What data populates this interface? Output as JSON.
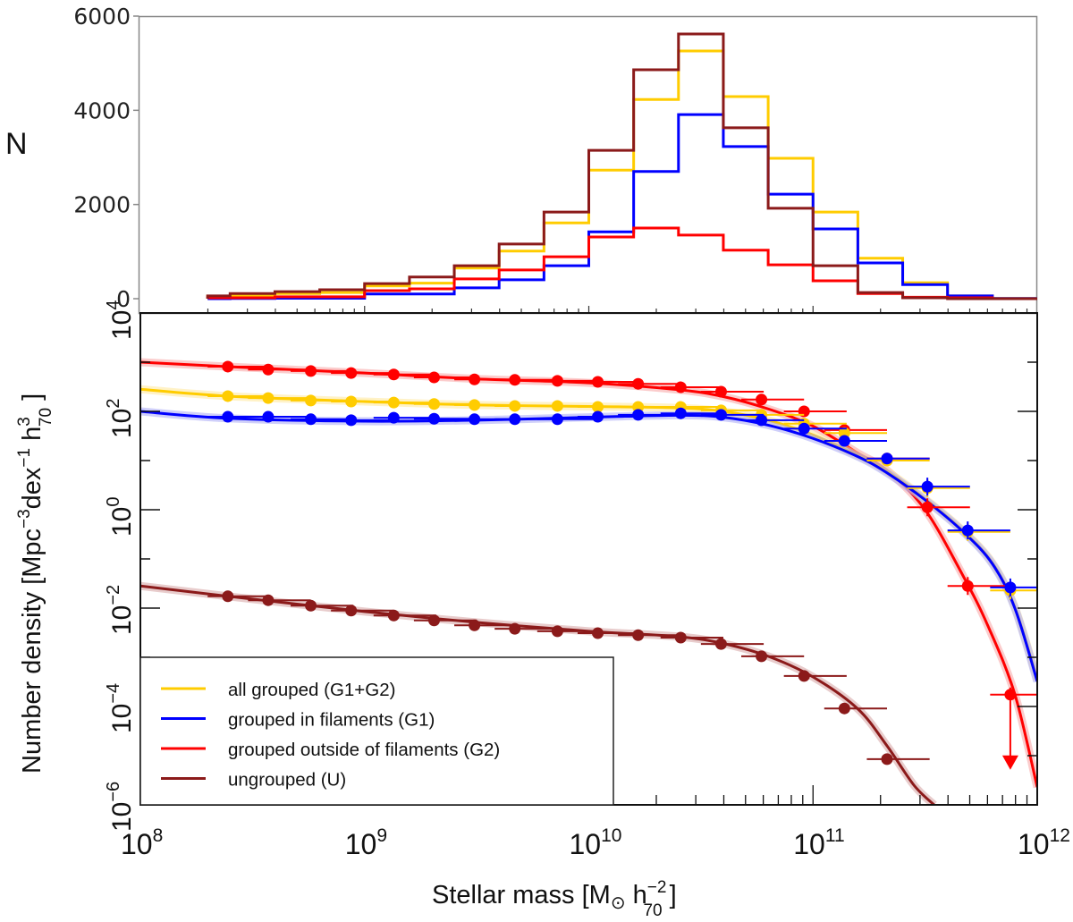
{
  "chart_data": [
    {
      "type": "histogram",
      "panel": "top",
      "ylabel": "N",
      "xscale": "log",
      "xlim_log10": [
        8,
        12
      ],
      "ylim": [
        -300,
        6000
      ],
      "yticks": [
        0,
        2000,
        4000,
        6000
      ],
      "ytick_labels": [
        "0",
        "2000",
        "4000",
        "6000"
      ],
      "bin_edges_log10": [
        8.3,
        8.4,
        8.6,
        8.8,
        9.0,
        9.2,
        9.4,
        9.6,
        9.8,
        10.0,
        10.2,
        10.4,
        10.6,
        10.8,
        11.0,
        11.2,
        11.4,
        11.6,
        11.8,
        12.0
      ],
      "series": [
        {
          "name": "all grouped (G1+G2)",
          "color": "#ffcc00",
          "values": [
            50,
            60,
            110,
            130,
            270,
            330,
            650,
            1010,
            1610,
            2730,
            4230,
            5260,
            4290,
            2980,
            1840,
            860,
            340,
            60,
            5
          ]
        },
        {
          "name": "grouped in filaments (G1)",
          "color": "#0000ff",
          "values": [
            0,
            5,
            10,
            10,
            100,
            100,
            230,
            400,
            700,
            1420,
            2700,
            3910,
            3230,
            2220,
            1480,
            760,
            300,
            60,
            5
          ]
        },
        {
          "name": "grouped outside of filaments (G2)",
          "color": "#ff0000",
          "values": [
            20,
            20,
            40,
            40,
            170,
            210,
            420,
            610,
            890,
            1310,
            1500,
            1350,
            1030,
            720,
            380,
            110,
            30,
            20,
            0
          ]
        },
        {
          "name": "ungrouped (U)",
          "color": "#8b1a1a",
          "values": [
            60,
            110,
            150,
            190,
            320,
            460,
            700,
            1160,
            1840,
            3150,
            4860,
            5620,
            3630,
            1920,
            700,
            130,
            20,
            0,
            0
          ]
        }
      ]
    },
    {
      "type": "line",
      "panel": "bottom",
      "xlabel": "Stellar mass [M⊙ h⁻²₇₀ ]",
      "ylabel": "Number density [Mpc⁻³dex⁻¹ h³₇₀ ]",
      "xscale": "log",
      "yscale": "log",
      "xlim_log10": [
        8,
        12
      ],
      "ylim_log10": [
        -6,
        4
      ],
      "xticks_log10": [
        8,
        9,
        10,
        11,
        12
      ],
      "yticks_log10": [
        -6,
        -4,
        -2,
        0,
        2,
        4
      ],
      "legend_position": "lower-left",
      "x_log10": [
        8.39,
        8.57,
        8.76,
        8.94,
        9.13,
        9.31,
        9.49,
        9.67,
        9.86,
        10.04,
        10.22,
        10.41,
        10.59,
        10.77,
        10.96,
        11.14,
        11.33,
        11.51,
        11.69,
        11.88
      ],
      "xerr_dex": 0.09,
      "series": [
        {
          "name": "all grouped (G1+G2)",
          "color": "#ffcc00",
          "y_log10": [
            2.31,
            2.27,
            2.22,
            2.2,
            2.18,
            2.15,
            2.13,
            2.11,
            2.11,
            2.09,
            2.09,
            2.09,
            2.02,
            1.93,
            1.75,
            1.56,
            1.0,
            0.44,
            -0.45,
            -1.64
          ],
          "fit_log10": [
            [
              8.0,
              2.45
            ],
            [
              8.39,
              2.31
            ],
            [
              9.0,
              2.2
            ],
            [
              9.5,
              2.13
            ],
            [
              10.0,
              2.1
            ],
            [
              10.4,
              2.07
            ],
            [
              10.6,
              2.0
            ],
            [
              10.8,
              1.82
            ],
            [
              11.0,
              1.52
            ],
            [
              11.2,
              1.1
            ],
            [
              11.33,
              0.78
            ],
            [
              11.5,
              0.22
            ],
            [
              11.67,
              -0.43
            ],
            [
              11.8,
              -1.08
            ],
            [
              11.9,
              -1.98
            ],
            [
              12.0,
              -3.45
            ]
          ]
        },
        {
          "name": "grouped in filaments (G1)",
          "color": "#0000ff",
          "y_log10": [
            1.89,
            1.89,
            1.84,
            1.82,
            1.87,
            1.85,
            1.84,
            1.84,
            1.84,
            1.89,
            1.93,
            1.96,
            1.93,
            1.82,
            1.65,
            1.4,
            1.04,
            0.47,
            -0.42,
            -1.58
          ],
          "fit_log10": [
            [
              8.0,
              2.0
            ],
            [
              8.39,
              1.86
            ],
            [
              9.0,
              1.8
            ],
            [
              9.5,
              1.82
            ],
            [
              10.0,
              1.88
            ],
            [
              10.4,
              1.92
            ],
            [
              10.6,
              1.88
            ],
            [
              10.8,
              1.72
            ],
            [
              11.0,
              1.45
            ],
            [
              11.2,
              1.08
            ],
            [
              11.33,
              0.75
            ],
            [
              11.5,
              0.2
            ],
            [
              11.67,
              -0.45
            ],
            [
              11.8,
              -1.1
            ],
            [
              11.9,
              -2.0
            ],
            [
              12.0,
              -3.49
            ]
          ]
        },
        {
          "name": "grouped outside of filaments (G2)",
          "color": "#ff0000",
          "y_log10": [
            2.91,
            2.85,
            2.82,
            2.78,
            2.75,
            2.69,
            2.65,
            2.64,
            2.62,
            2.6,
            2.56,
            2.49,
            2.4,
            2.24,
            2.0,
            1.62,
            1.04,
            0.05,
            -1.55,
            -3.76
          ],
          "upper_limit_index": 19,
          "fit_log10": [
            [
              8.0,
              3.0
            ],
            [
              8.39,
              2.91
            ],
            [
              9.0,
              2.78
            ],
            [
              9.5,
              2.66
            ],
            [
              10.0,
              2.58
            ],
            [
              10.4,
              2.44
            ],
            [
              10.6,
              2.3
            ],
            [
              10.8,
              2.05
            ],
            [
              11.0,
              1.7
            ],
            [
              11.2,
              1.15
            ],
            [
              11.33,
              0.8
            ],
            [
              11.5,
              0.0
            ],
            [
              11.67,
              -1.35
            ],
            [
              11.78,
              -2.36
            ],
            [
              11.9,
              -3.75
            ],
            [
              12.0,
              -5.64
            ]
          ]
        },
        {
          "name": "ungrouped (U)",
          "color": "#8b1a1a",
          "y_log10": [
            -1.76,
            -1.84,
            -1.95,
            -2.05,
            -2.15,
            -2.25,
            -2.35,
            -2.42,
            -2.47,
            -2.51,
            -2.55,
            -2.6,
            -2.73,
            -2.98,
            -3.38,
            -4.04,
            -5.07
          ],
          "fit_log10": [
            [
              8.0,
              -1.55
            ],
            [
              8.39,
              -1.76
            ],
            [
              9.0,
              -2.07
            ],
            [
              9.5,
              -2.29
            ],
            [
              10.0,
              -2.47
            ],
            [
              10.4,
              -2.58
            ],
            [
              10.6,
              -2.72
            ],
            [
              10.8,
              -2.98
            ],
            [
              11.0,
              -3.4
            ],
            [
              11.2,
              -4.05
            ],
            [
              11.33,
              -4.8
            ],
            [
              11.45,
              -5.6
            ],
            [
              11.54,
              -6.0
            ]
          ]
        }
      ]
    }
  ],
  "labels": {
    "top_ylabel": "N",
    "top_yticks": [
      "0",
      "2000",
      "4000",
      "6000"
    ],
    "bottom_ytick_base": "10",
    "bottom_ytick_exps": [
      "4",
      "2",
      "0",
      "−2",
      "−4",
      "−6"
    ],
    "xtick_base": "10",
    "xtick_exps": [
      "8",
      "9",
      "10",
      "11",
      "12"
    ],
    "xlabel_main": "Stellar mass [M",
    "xlabel_sun": "⊙",
    "xlabel_h": " h",
    "xlabel_sup": "−2",
    "xlabel_sub": "70",
    "xlabel_end": " ]",
    "ylabel_main": "Number density [Mpc",
    "ylabel_sup1": "−3",
    "ylabel_mid": "dex",
    "ylabel_sup2": "−1",
    "ylabel_h": " h",
    "ylabel_sup3": "3",
    "ylabel_sub": "70",
    "ylabel_end": " ]"
  },
  "legend": [
    {
      "label": "all grouped (G1+G2)",
      "color": "#ffcc00"
    },
    {
      "label": "grouped in filaments (G1)",
      "color": "#0000ff"
    },
    {
      "label": "grouped outside of filaments (G2)",
      "color": "#ff0000"
    },
    {
      "label": "ungrouped (U)",
      "color": "#8b1a1a"
    }
  ]
}
